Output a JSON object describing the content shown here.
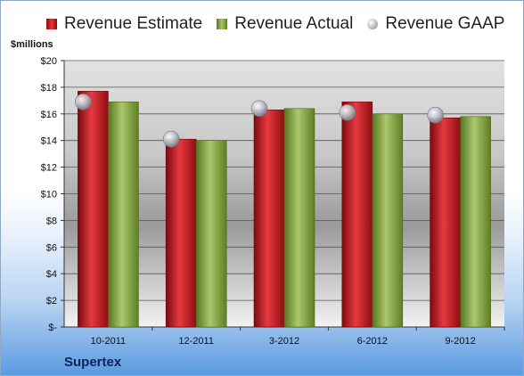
{
  "chart_data": {
    "type": "bar",
    "unit_label": "$millions",
    "categories": [
      "10-2011",
      "12-2011",
      "3-2012",
      "6-2012",
      "9-2012"
    ],
    "series": [
      {
        "name": "Revenue Estimate",
        "kind": "bar",
        "color": "#c8161d",
        "values": [
          17.7,
          14.1,
          16.3,
          16.9,
          15.7
        ]
      },
      {
        "name": "Revenue Actual",
        "kind": "bar",
        "color": "#8aa84c",
        "values": [
          16.9,
          14.0,
          16.4,
          16.0,
          15.8
        ]
      },
      {
        "name": "Revenue GAAP",
        "kind": "marker",
        "color": "#b0b4bc",
        "values": [
          16.9,
          14.1,
          16.4,
          16.1,
          15.9
        ]
      }
    ],
    "ylim": [
      0,
      20
    ],
    "y_ticks": [
      "$-",
      "$2",
      "$4",
      "$6",
      "$8",
      "$10",
      "$12",
      "$14",
      "$16",
      "$18",
      "$20"
    ],
    "grid": true,
    "legend_position": "top",
    "company": "Supertex"
  }
}
